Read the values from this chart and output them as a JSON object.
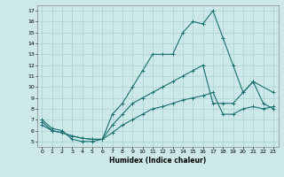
{
  "xlabel": "Humidex (Indice chaleur)",
  "bg_color": "#cce8e8",
  "line_color": "#1a7070",
  "grid_color": "#aad0d0",
  "xlim": [
    -0.5,
    23.5
  ],
  "ylim": [
    4.5,
    17.5
  ],
  "xticks": [
    0,
    1,
    2,
    3,
    4,
    5,
    6,
    7,
    8,
    9,
    10,
    11,
    12,
    13,
    14,
    15,
    16,
    17,
    18,
    19,
    20,
    21,
    22,
    23
  ],
  "yticks": [
    5,
    6,
    7,
    8,
    9,
    10,
    11,
    12,
    13,
    14,
    15,
    16,
    17
  ],
  "line1_x": [
    0,
    1,
    2,
    3,
    4,
    5,
    6,
    7,
    8,
    9,
    10,
    11,
    12,
    13,
    14,
    15,
    16,
    17,
    18,
    19,
    20,
    21,
    23
  ],
  "line1_y": [
    7,
    6.2,
    6,
    5.2,
    5,
    5,
    5.2,
    7.5,
    8.5,
    10,
    11.5,
    13,
    13,
    13,
    15,
    16,
    15.8,
    17,
    14.5,
    12,
    9.5,
    10.5,
    9.5
  ],
  "line2_x": [
    0,
    1,
    2,
    3,
    4,
    5,
    6,
    7,
    8,
    9,
    10,
    11,
    12,
    13,
    14,
    15,
    16,
    17,
    18,
    19,
    20,
    21,
    22,
    23
  ],
  "line2_y": [
    6.8,
    6,
    5.8,
    5.5,
    5.3,
    5.2,
    5.2,
    6.5,
    7.5,
    8.5,
    9,
    9.5,
    10,
    10.5,
    11,
    11.5,
    12,
    8.5,
    8.5,
    8.5,
    9.5,
    10.5,
    8.5,
    8
  ],
  "line3_x": [
    0,
    1,
    2,
    3,
    4,
    5,
    6,
    7,
    8,
    9,
    10,
    11,
    12,
    13,
    14,
    15,
    16,
    17,
    18,
    19,
    20,
    21,
    22,
    23
  ],
  "line3_y": [
    6.5,
    6,
    5.8,
    5.5,
    5.3,
    5.2,
    5.2,
    5.8,
    6.5,
    7,
    7.5,
    8,
    8.2,
    8.5,
    8.8,
    9,
    9.2,
    9.5,
    7.5,
    7.5,
    8,
    8.2,
    8,
    8.2
  ]
}
